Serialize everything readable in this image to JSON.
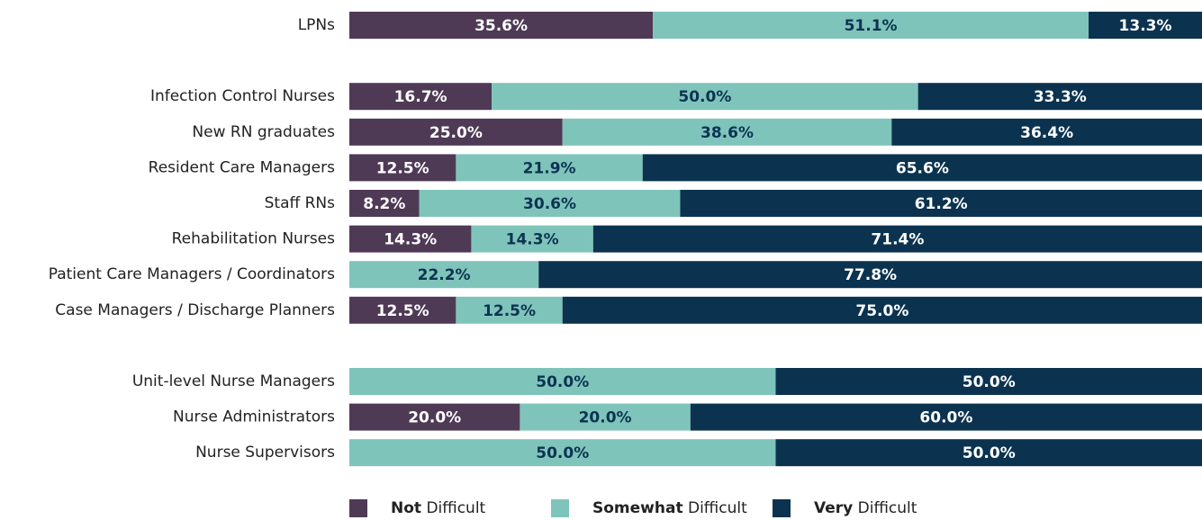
{
  "chart_data": {
    "type": "stacked_bar_horizontal",
    "categories": [
      "LPNs",
      "Infection Control Nurses",
      "New RN graduates",
      "Resident Care Managers",
      "Staff RNs",
      "Rehabilitation Nurses",
      "Patient Care Managers / Coordinators",
      "Case Managers / Discharge Planners",
      "Unit-level Nurse Managers",
      "Nurse Administrators",
      "Nurse Supervisors"
    ],
    "series": [
      {
        "name": "Not Difficult",
        "color": "#4f3a56",
        "label_color": "#ffffff",
        "values": [
          35.6,
          16.7,
          25.0,
          12.5,
          8.2,
          14.3,
          0,
          12.5,
          0,
          20.0,
          0
        ],
        "value_labels": [
          "35.6%",
          "16.7%",
          "25.0%",
          "12.5%",
          "8.2%",
          "14.3%",
          null,
          "12.5%",
          null,
          "20.0%",
          null
        ]
      },
      {
        "name": "Somewhat Difficult",
        "color": "#7fc4bb",
        "label_color": "#0b3350",
        "values": [
          51.1,
          50.0,
          38.6,
          21.9,
          30.6,
          14.3,
          22.2,
          12.5,
          50.0,
          20.0,
          50.0
        ],
        "value_labels": [
          "51.1%",
          "50.0%",
          "38.6%",
          "21.9%",
          "30.6%",
          "14.3%",
          "22.2%",
          "12.5%",
          "50.0%",
          "20.0%",
          "50.0%"
        ]
      },
      {
        "name": "Very Difficult",
        "color": "#0b3350",
        "label_color": "#ffffff",
        "values": [
          13.3,
          33.3,
          36.4,
          65.6,
          61.2,
          71.4,
          77.8,
          75.0,
          50.0,
          60.0,
          50.0
        ],
        "value_labels": [
          "13.3%",
          "33.3%",
          "36.4%",
          "65.6%",
          "61.2%",
          "71.4%",
          "77.8%",
          "75.0%",
          "50.0%",
          "60.0%",
          "50.0%"
        ]
      }
    ],
    "xlim": [
      0,
      100
    ],
    "legend": "bottom"
  }
}
